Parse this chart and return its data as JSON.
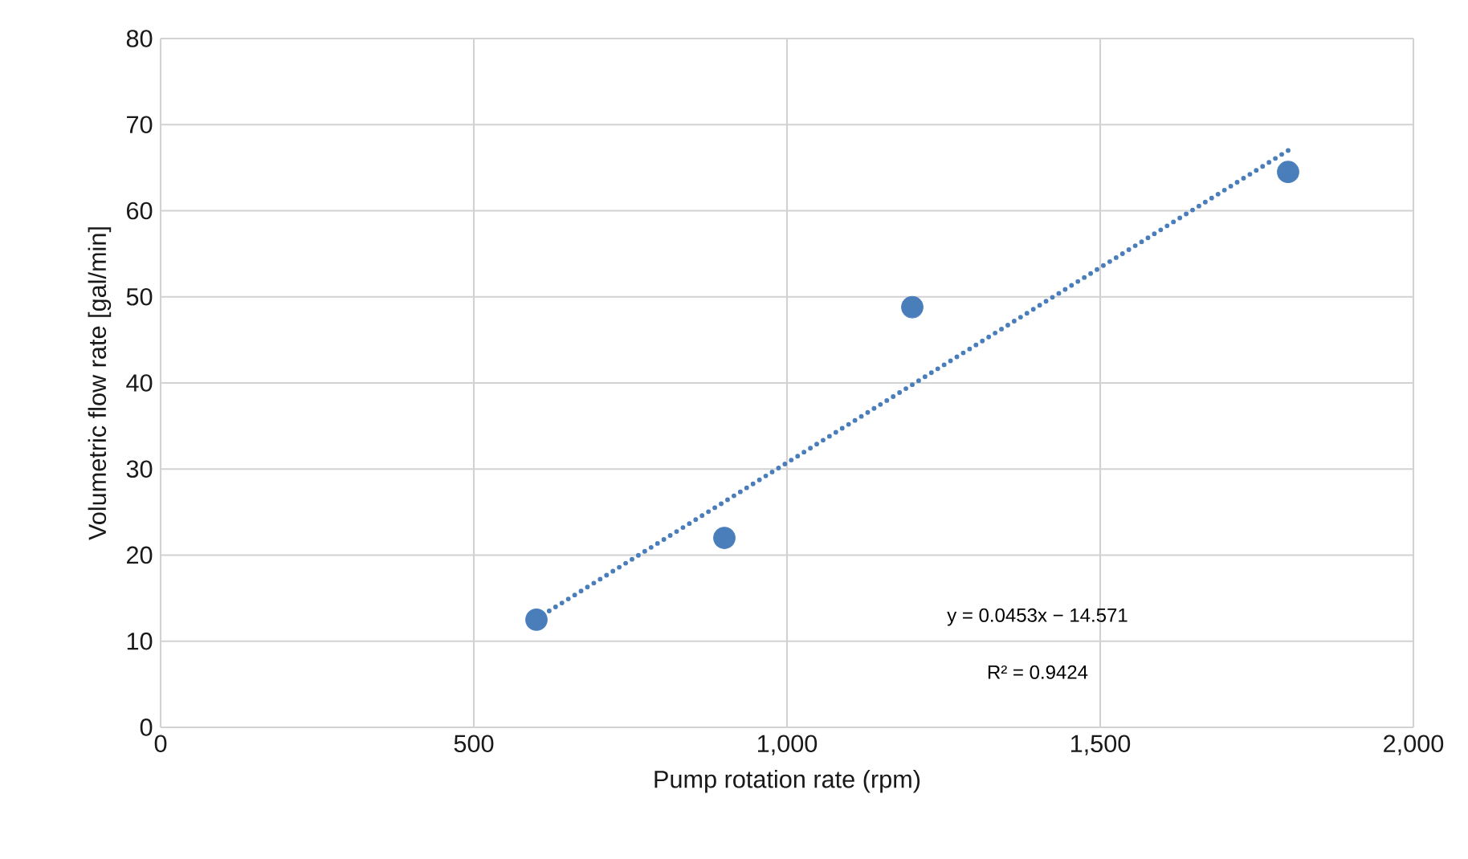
{
  "chart_data": {
    "type": "scatter",
    "xlabel": "Pump rotation rate (rpm)",
    "ylabel": "Volumetric flow rate [gal/min]",
    "series": [
      {
        "color": "#4a7ebb",
        "x": [
          600,
          900,
          1200,
          1800
        ],
        "values": [
          12.5,
          22,
          48.8,
          64.5
        ],
        "marker": "circle"
      },
      {
        "type": "line",
        "color": "#4a7ebb",
        "x": [
          600,
          1800
        ],
        "values": [
          12.6,
          67.0
        ],
        "line_style": "dotted",
        "marker": "none"
      }
    ],
    "xlim": [
      0,
      2000
    ],
    "xticks": [
      0,
      {
        "value": 500,
        "label": "500"
      },
      {
        "value": 1000,
        "label": "1,000"
      },
      {
        "value": 1500,
        "label": "1,500"
      },
      {
        "value": 2000,
        "label": "2,000"
      }
    ],
    "ylim": [
      0,
      80
    ],
    "yticks": [
      0,
      10,
      20,
      30,
      40,
      50,
      60,
      70,
      80
    ],
    "grid": true,
    "annotations": [
      "y = 0.0453x − 14.571",
      "R² = 0.9424"
    ]
  }
}
